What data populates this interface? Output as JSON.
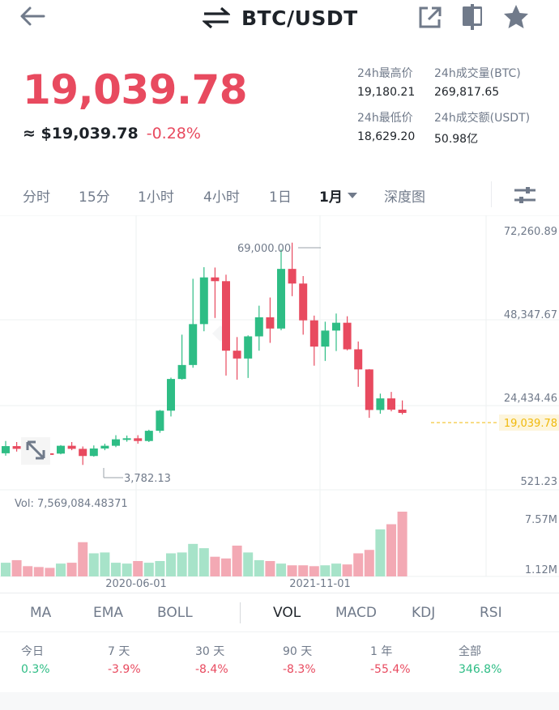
{
  "header": {
    "pair": "BTC/USDT",
    "icons": [
      "back-arrow-icon",
      "swap-icon",
      "share-icon",
      "bookmark-icon",
      "star-icon"
    ]
  },
  "price": {
    "last": "19,039.78",
    "usd": "≈ $19,039.78",
    "change": "-0.28%",
    "color_down": "#e84a5f",
    "color_up": "#2ebd85"
  },
  "stats": {
    "high_label": "24h最高价",
    "high_value": "19,180.21",
    "low_label": "24h最低价",
    "low_value": "18,629.20",
    "vol_btc_label": "24h成交量(BTC)",
    "vol_btc_value": "269,817.65",
    "vol_usdt_label": "24h成交额(USDT)",
    "vol_usdt_value": "50.98亿"
  },
  "timeframes": [
    "分时",
    "15分",
    "1小时",
    "4小时",
    "1日",
    "1月",
    "深度图"
  ],
  "active_timeframe": "1月",
  "chart": {
    "y_ticks": [
      "72,260.89",
      "48,347.67",
      "24,434.46",
      "521.23"
    ],
    "last_price_tag": "19,039.78",
    "high_label": "69,000.00",
    "low_label": "3,782.13",
    "vol_label": "Vol: 7,569,084.48371",
    "vol_ticks": [
      "7.57M",
      "1.12M"
    ],
    "x_ticks": [
      "2020-06-01",
      "2021-11-01"
    ]
  },
  "chart_data": {
    "type": "candlestick",
    "interval": "1M",
    "y_range": [
      521.23,
      72260.89
    ],
    "candles": [
      {
        "o": 7200,
        "c": 9300,
        "h": 10800,
        "l": 6500
      },
      {
        "o": 9300,
        "c": 8500,
        "h": 10500,
        "l": 7700
      },
      {
        "o": 8500,
        "c": 8300,
        "h": 9600,
        "l": 7400
      },
      {
        "o": 8300,
        "c": 7200,
        "h": 8800,
        "l": 6500
      },
      {
        "o": 7200,
        "c": 7100,
        "h": 7700,
        "l": 6500
      },
      {
        "o": 7100,
        "c": 9400,
        "h": 9600,
        "l": 6900
      },
      {
        "o": 9400,
        "c": 8500,
        "h": 10500,
        "l": 8100
      },
      {
        "o": 8500,
        "c": 6400,
        "h": 9200,
        "l": 3782.13
      },
      {
        "o": 6400,
        "c": 8600,
        "h": 9500,
        "l": 6200
      },
      {
        "o": 8600,
        "c": 9400,
        "h": 10000,
        "l": 8100
      },
      {
        "o": 9400,
        "c": 11300,
        "h": 12500,
        "l": 9000
      },
      {
        "o": 11300,
        "c": 11600,
        "h": 12400,
        "l": 10600
      },
      {
        "o": 11600,
        "c": 10800,
        "h": 12500,
        "l": 10000
      },
      {
        "o": 10800,
        "c": 13800,
        "h": 14100,
        "l": 10500
      },
      {
        "o": 13800,
        "c": 19700,
        "h": 19900,
        "l": 13200
      },
      {
        "o": 19700,
        "c": 29000,
        "h": 29400,
        "l": 18000
      },
      {
        "o": 29000,
        "c": 33100,
        "h": 42000,
        "l": 28800
      },
      {
        "o": 33100,
        "c": 45100,
        "h": 58400,
        "l": 32300
      },
      {
        "o": 45100,
        "c": 58800,
        "h": 61800,
        "l": 43000
      },
      {
        "o": 58800,
        "c": 57700,
        "h": 61700,
        "l": 46900
      },
      {
        "o": 57700,
        "c": 37300,
        "h": 59600,
        "l": 30000
      },
      {
        "o": 37300,
        "c": 35000,
        "h": 41300,
        "l": 28800
      },
      {
        "o": 35000,
        "c": 41500,
        "h": 41800,
        "l": 29300
      },
      {
        "o": 41500,
        "c": 47100,
        "h": 50500,
        "l": 37300
      },
      {
        "o": 47100,
        "c": 43800,
        "h": 52900,
        "l": 39600
      },
      {
        "o": 43800,
        "c": 61300,
        "h": 67000,
        "l": 43300
      },
      {
        "o": 61300,
        "c": 57000,
        "h": 69000,
        "l": 53300
      },
      {
        "o": 57000,
        "c": 46200,
        "h": 59200,
        "l": 42000
      },
      {
        "o": 46200,
        "c": 38500,
        "h": 47600,
        "l": 32900
      },
      {
        "o": 38500,
        "c": 43200,
        "h": 45800,
        "l": 34300
      },
      {
        "o": 43200,
        "c": 45500,
        "h": 48200,
        "l": 37200
      },
      {
        "o": 45500,
        "c": 37700,
        "h": 47400,
        "l": 37400
      },
      {
        "o": 37700,
        "c": 31800,
        "h": 40000,
        "l": 26700
      },
      {
        "o": 31800,
        "c": 19900,
        "h": 31900,
        "l": 17600
      },
      {
        "o": 19900,
        "c": 23300,
        "h": 24700,
        "l": 18800
      },
      {
        "o": 23300,
        "c": 20000,
        "h": 25200,
        "l": 19500
      },
      {
        "o": 20000,
        "c": 19040,
        "h": 22700,
        "l": 18600
      }
    ],
    "volume": [
      1.6,
      1.9,
      1.2,
      1.1,
      1.0,
      1.5,
      1.6,
      4.0,
      2.7,
      2.8,
      1.6,
      1.5,
      1.8,
      1.6,
      1.8,
      2.7,
      2.8,
      3.8,
      3.3,
      2.3,
      2.1,
      3.6,
      2.8,
      1.9,
      1.8,
      1.5,
      1.3,
      1.3,
      1.2,
      1.3,
      1.5,
      1.4,
      2.7,
      3.1,
      5.5,
      6.1,
      7.57
    ],
    "vol_range": [
      0,
      7.57
    ]
  },
  "indicators": [
    "MA",
    "EMA",
    "BOLL",
    "VOL",
    "MACD",
    "KDJ",
    "RSI"
  ],
  "active_indicator": "VOL",
  "returns": [
    {
      "label": "今日",
      "value": "0.3%",
      "dir": "up"
    },
    {
      "label": "7 天",
      "value": "-3.9%",
      "dir": "down"
    },
    {
      "label": "30 天",
      "value": "-8.4%",
      "dir": "down"
    },
    {
      "label": "90 天",
      "value": "-8.3%",
      "dir": "down"
    },
    {
      "label": "1 年",
      "value": "-55.4%",
      "dir": "down"
    },
    {
      "label": "全部",
      "value": "346.8%",
      "dir": "up"
    }
  ]
}
